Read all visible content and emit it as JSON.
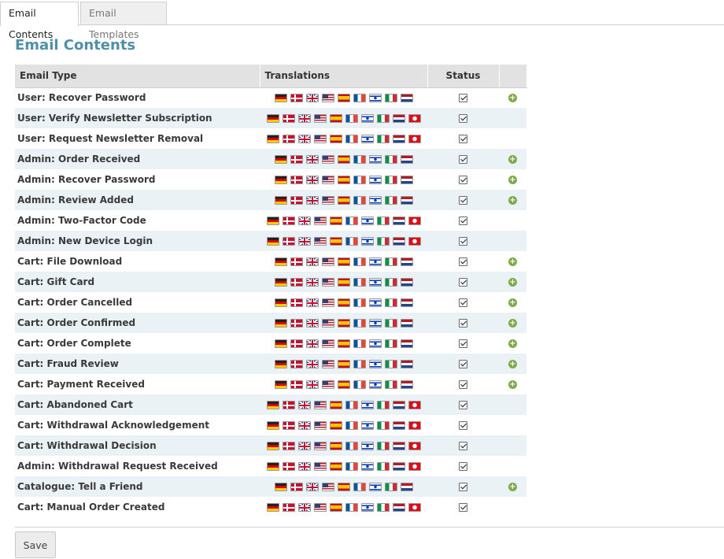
{
  "tabs": [
    {
      "label": "Email Contents",
      "active": true
    },
    {
      "label": "Email Templates",
      "active": false
    }
  ],
  "page_title": "Email Contents",
  "table": {
    "headers": {
      "email_type": "Email Type",
      "translations": "Translations",
      "status": "Status"
    },
    "flag_sets": {
      "short": [
        "de-flag-icon",
        "dk-flag-icon",
        "gb-flag-icon",
        "us-flag-icon",
        "es-flag-icon",
        "fr-flag-icon",
        "il-flag-icon",
        "it-flag-icon",
        "nl-flag-icon"
      ],
      "long": [
        "de-flag-icon",
        "dk-flag-icon",
        "gb-flag-icon",
        "us-flag-icon",
        "es-flag-icon",
        "fr-flag-icon",
        "il-flag-icon",
        "it-flag-icon",
        "nl-flag-icon",
        "tr-flag-icon"
      ]
    },
    "rows": [
      {
        "type": "User: Recover Password",
        "flags": "short",
        "status": true,
        "add": true
      },
      {
        "type": "User: Verify Newsletter Subscription",
        "flags": "long",
        "status": true,
        "add": false
      },
      {
        "type": "User: Request Newsletter Removal",
        "flags": "long",
        "status": true,
        "add": false
      },
      {
        "type": "Admin: Order Received",
        "flags": "short",
        "status": true,
        "add": true
      },
      {
        "type": "Admin: Recover Password",
        "flags": "short",
        "status": true,
        "add": true
      },
      {
        "type": "Admin: Review Added",
        "flags": "short",
        "status": true,
        "add": true
      },
      {
        "type": "Admin: Two-Factor Code",
        "flags": "long",
        "status": true,
        "add": false
      },
      {
        "type": "Admin: New Device Login",
        "flags": "long",
        "status": true,
        "add": false
      },
      {
        "type": "Cart: File Download",
        "flags": "short",
        "status": true,
        "add": true
      },
      {
        "type": "Cart: Gift Card",
        "flags": "short",
        "status": true,
        "add": true
      },
      {
        "type": "Cart: Order Cancelled",
        "flags": "short",
        "status": true,
        "add": true
      },
      {
        "type": "Cart: Order Confirmed",
        "flags": "short",
        "status": true,
        "add": true
      },
      {
        "type": "Cart: Order Complete",
        "flags": "short",
        "status": true,
        "add": true
      },
      {
        "type": "Cart: Fraud Review",
        "flags": "short",
        "status": true,
        "add": true
      },
      {
        "type": "Cart: Payment Received",
        "flags": "short",
        "status": true,
        "add": true
      },
      {
        "type": "Cart: Abandoned Cart",
        "flags": "long",
        "status": true,
        "add": false
      },
      {
        "type": "Cart: Withdrawal Acknowledgement",
        "flags": "long",
        "status": true,
        "add": false
      },
      {
        "type": "Cart: Withdrawal Decision",
        "flags": "long",
        "status": true,
        "add": false
      },
      {
        "type": "Admin: Withdrawal Request Received",
        "flags": "long",
        "status": true,
        "add": false
      },
      {
        "type": "Catalogue: Tell a Friend",
        "flags": "short",
        "status": true,
        "add": true
      },
      {
        "type": "Cart: Manual Order Created",
        "flags": "long",
        "status": true,
        "add": false
      }
    ]
  },
  "save_label": "Save",
  "colors": {
    "title": "#4f8fa8",
    "header_bg": "#e2e2e2",
    "alt_row": "#eaf2f5",
    "add_icon": "#7eaa4a"
  }
}
